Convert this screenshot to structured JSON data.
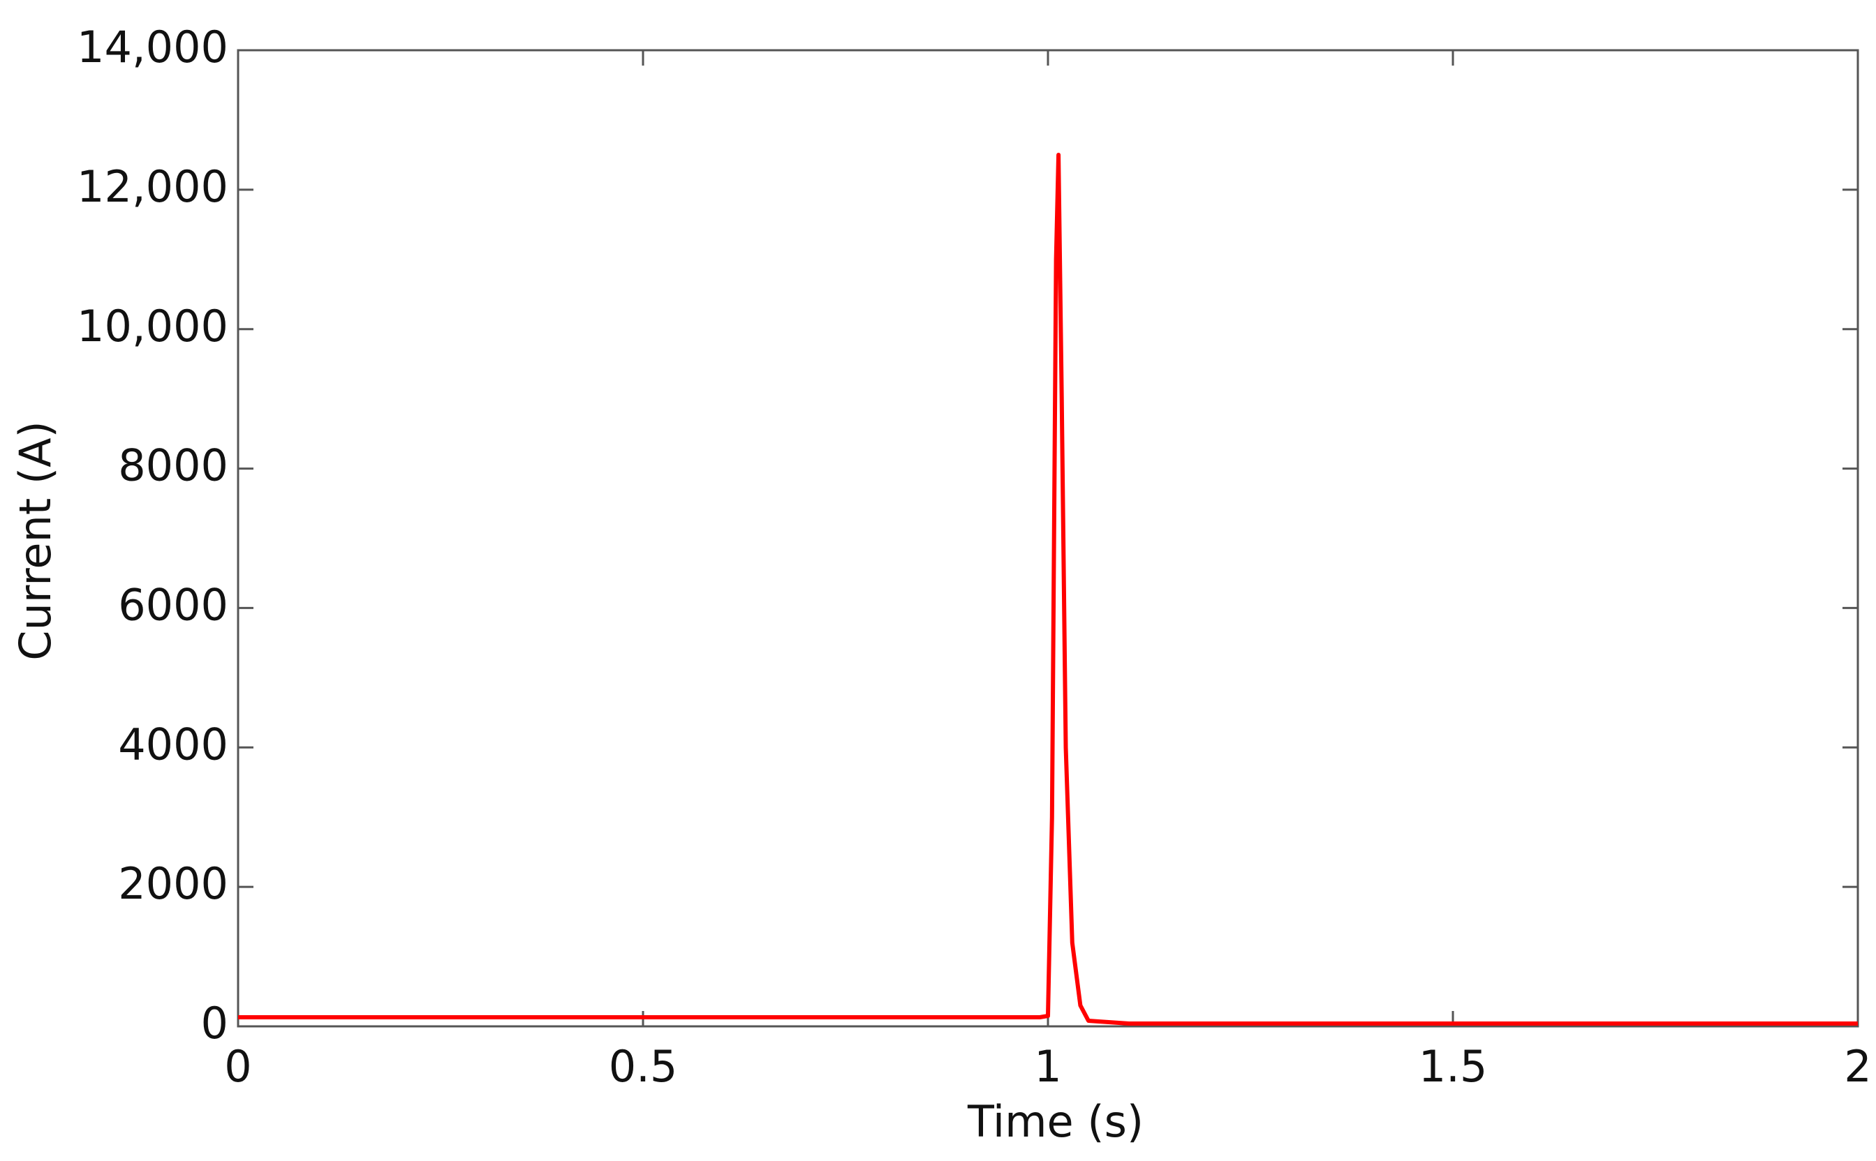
{
  "chart_data": {
    "type": "line",
    "x_label": "Time (s)",
    "y_label": "Current (A)",
    "x": [
      0,
      0.5,
      0.99,
      1.0,
      1.005,
      1.01,
      1.013,
      1.017,
      1.022,
      1.03,
      1.04,
      1.05,
      1.1,
      1.5,
      2
    ],
    "series": [
      {
        "name": "Current",
        "color": "#ff0000",
        "values": [
          130,
          130,
          130,
          150,
          3000,
          11000,
          12500,
          9000,
          4000,
          1200,
          300,
          80,
          40,
          40,
          40
        ]
      }
    ],
    "xlim": [
      0,
      2
    ],
    "ylim": [
      0,
      14000
    ],
    "xticks": [
      0,
      0.5,
      1,
      1.5,
      2
    ],
    "yticks": [
      0,
      2000,
      4000,
      6000,
      8000,
      {
        "value": 10000,
        "label": "10,000"
      },
      {
        "value": 12000,
        "label": "12,000"
      },
      {
        "value": 14000,
        "label": "14,000"
      }
    ],
    "grid": false
  }
}
